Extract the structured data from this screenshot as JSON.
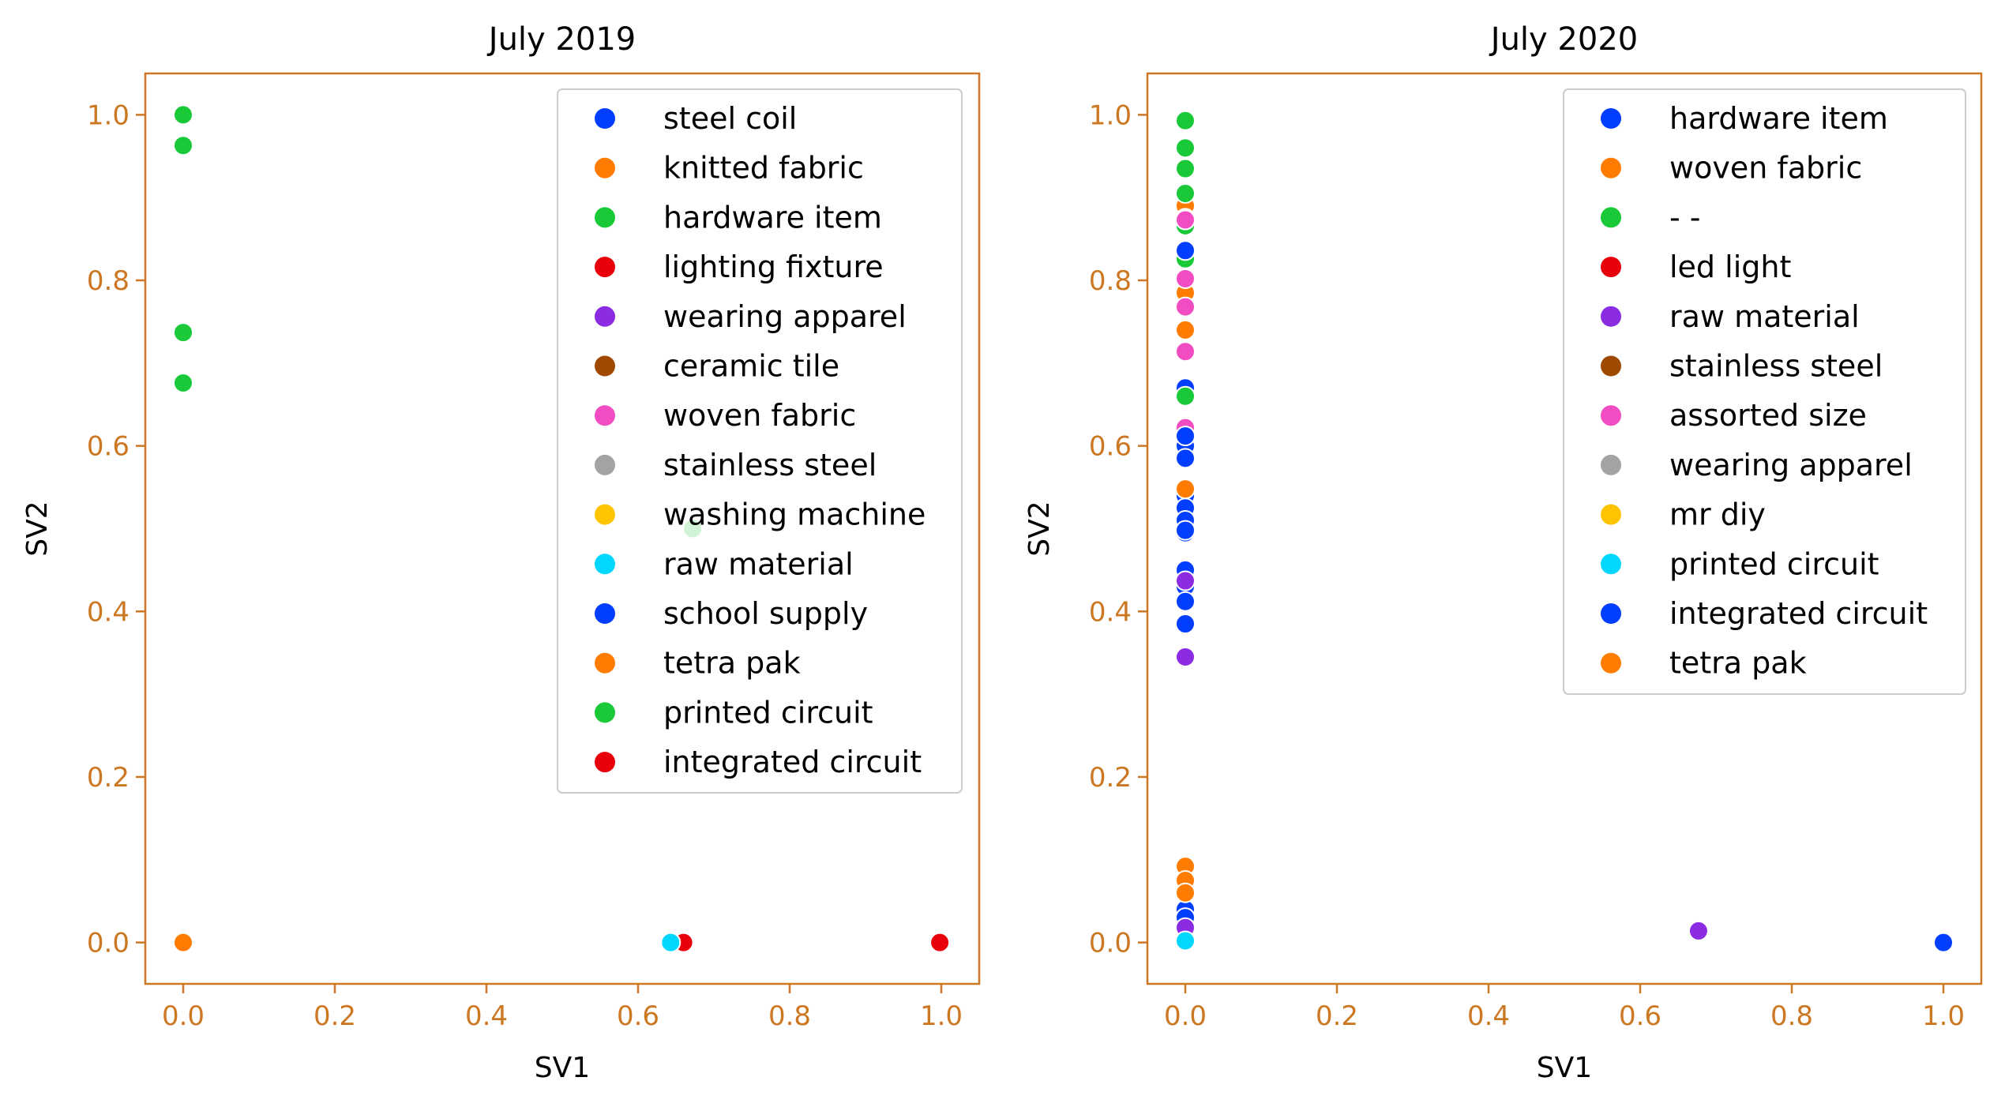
{
  "style": {
    "accent": "#cc7722",
    "background": "#ffffff"
  },
  "chart_data": [
    {
      "type": "scatter",
      "title": "July 2019",
      "xlabel": "SV1",
      "ylabel": "SV2",
      "xlim": [
        -0.05,
        1.05
      ],
      "ylim": [
        -0.05,
        1.05
      ],
      "xticks": [
        "0.0",
        "0.2",
        "0.4",
        "0.6",
        "0.8",
        "1.0"
      ],
      "yticks": [
        "0.0",
        "0.2",
        "0.4",
        "0.6",
        "0.8",
        "1.0"
      ],
      "grid": false,
      "legend_position": "top-right",
      "series": [
        {
          "name": "steel coil",
          "color": "#023eff",
          "points": []
        },
        {
          "name": "knitted fabric",
          "color": "#ff7c00",
          "points": [
            [
              0.0,
              0.0
            ]
          ]
        },
        {
          "name": "hardware item",
          "color": "#1ac938",
          "points": [
            [
              0.0,
              1.0
            ],
            [
              0.0,
              0.963
            ],
            [
              0.0,
              0.737
            ],
            [
              0.0,
              0.676
            ],
            [
              0.672,
              0.5
            ]
          ]
        },
        {
          "name": "lighting fixture",
          "color": "#e8000b",
          "points": [
            [
              0.66,
              0.0
            ]
          ]
        },
        {
          "name": "wearing apparel",
          "color": "#8b2be2",
          "points": []
        },
        {
          "name": "ceramic tile",
          "color": "#9f4800",
          "points": []
        },
        {
          "name": "woven fabric",
          "color": "#f14cc1",
          "points": []
        },
        {
          "name": "stainless steel",
          "color": "#a3a3a3",
          "points": []
        },
        {
          "name": "washing machine",
          "color": "#ffc400",
          "points": []
        },
        {
          "name": "raw material",
          "color": "#00d7ff",
          "points": [
            [
              0.002,
              0.0
            ],
            [
              0.643,
              0.0
            ]
          ]
        },
        {
          "name": "school supply",
          "color": "#023eff",
          "points": []
        },
        {
          "name": "tetra pak",
          "color": "#ff7c00",
          "points": [
            [
              0.0,
              0.0
            ]
          ]
        },
        {
          "name": "printed circuit",
          "color": "#1ac938",
          "points": []
        },
        {
          "name": "integrated circuit",
          "color": "#e8000b",
          "points": [
            [
              0.998,
              0.0
            ]
          ]
        }
      ]
    },
    {
      "type": "scatter",
      "title": "July 2020",
      "xlabel": "SV1",
      "ylabel": "SV2",
      "xlim": [
        -0.05,
        1.05
      ],
      "ylim": [
        -0.05,
        1.05
      ],
      "xticks": [
        "0.0",
        "0.2",
        "0.4",
        "0.6",
        "0.8",
        "1.0"
      ],
      "yticks": [
        "0.0",
        "0.2",
        "0.4",
        "0.6",
        "0.8",
        "1.0"
      ],
      "grid": false,
      "legend_position": "top-right",
      "series": [
        {
          "name": "hardware item",
          "color": "#023eff",
          "points": [
            [
              0.0,
              0.67
            ],
            [
              0.0,
              0.62
            ],
            [
              0.0,
              0.6
            ],
            [
              0.0,
              0.585
            ],
            [
              0.0,
              0.54
            ],
            [
              0.0,
              0.525
            ],
            [
              0.0,
              0.51
            ],
            [
              0.0,
              0.495
            ],
            [
              0.0,
              0.45
            ],
            [
              0.0,
              0.43
            ],
            [
              0.0,
              0.412
            ],
            [
              0.0,
              0.385
            ],
            [
              0.0,
              0.04
            ],
            [
              0.0,
              0.03
            ],
            [
              1.0,
              0.0
            ]
          ]
        },
        {
          "name": "woven fabric",
          "color": "#ff7c00",
          "points": [
            [
              0.0,
              0.89
            ],
            [
              0.0,
              0.875
            ],
            [
              0.0,
              0.785
            ],
            [
              0.0,
              0.74
            ],
            [
              0.0,
              0.548
            ],
            [
              0.0,
              0.092
            ],
            [
              0.0,
              0.075
            ],
            [
              0.0,
              0.06
            ]
          ]
        },
        {
          "name": "- -",
          "color": "#1ac938",
          "points": [
            [
              0.0,
              0.993
            ],
            [
              0.0,
              0.96
            ],
            [
              0.0,
              0.935
            ],
            [
              0.0,
              0.905
            ],
            [
              0.0,
              0.866
            ],
            [
              0.0,
              0.826
            ],
            [
              0.0,
              0.66
            ]
          ]
        },
        {
          "name": "led light",
          "color": "#e8000b",
          "points": []
        },
        {
          "name": "raw material",
          "color": "#8b2be2",
          "points": [
            [
              0.0,
              0.437
            ],
            [
              0.0,
              0.345
            ],
            [
              0.0,
              0.018
            ],
            [
              0.677,
              0.014
            ]
          ]
        },
        {
          "name": "stainless steel",
          "color": "#9f4800",
          "points": []
        },
        {
          "name": "assorted size",
          "color": "#f14cc1",
          "points": [
            [
              0.0,
              0.873
            ],
            [
              0.0,
              0.802
            ],
            [
              0.0,
              0.768
            ],
            [
              0.0,
              0.714
            ],
            [
              0.0,
              0.622
            ]
          ]
        },
        {
          "name": "wearing apparel",
          "color": "#a3a3a3",
          "points": []
        },
        {
          "name": "mr diy",
          "color": "#ffc400",
          "points": []
        },
        {
          "name": "printed circuit",
          "color": "#00d7ff",
          "points": [
            [
              0.0,
              0.002
            ]
          ]
        },
        {
          "name": "integrated circuit",
          "color": "#023eff",
          "points": [
            [
              0.0,
              0.836
            ],
            [
              0.0,
              0.612
            ],
            [
              0.0,
              0.498
            ]
          ]
        },
        {
          "name": "tetra pak",
          "color": "#ff7c00",
          "points": []
        }
      ]
    }
  ]
}
